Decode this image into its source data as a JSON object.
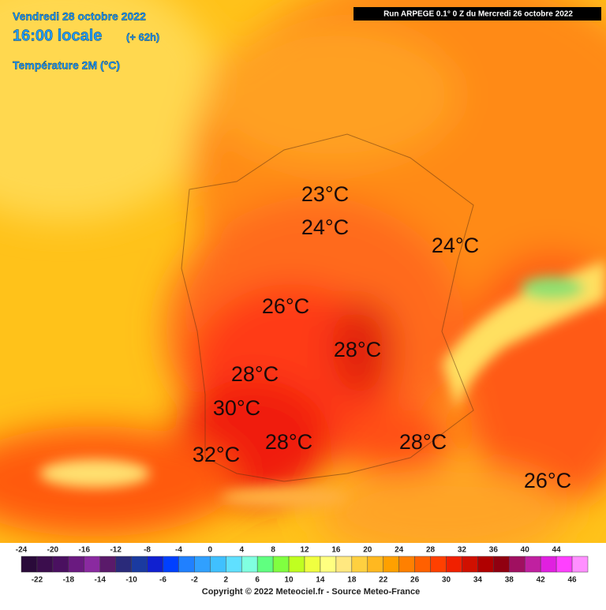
{
  "header": {
    "date": "Vendredi 28 octobre 2022",
    "time": "16:00 locale",
    "lead": "(+ 62h)",
    "variable": "Température 2M (°C)",
    "run": "Run ARPEGE 0.1° 0 Z du Mercredi 26 octobre 2022"
  },
  "map_labels": [
    "23°C",
    "24°C",
    "24°C",
    "26°C",
    "28°C",
    "28°C",
    "30°C",
    "28°C",
    "32°C",
    "28°C",
    "26°C"
  ],
  "legend": {
    "ticks": [
      -24,
      -22,
      -20,
      -18,
      -16,
      -14,
      -12,
      -10,
      -8,
      -6,
      -4,
      -2,
      0,
      2,
      4,
      6,
      8,
      10,
      12,
      14,
      16,
      18,
      20,
      22,
      24,
      26,
      28,
      30,
      32,
      34,
      36,
      38,
      40,
      42,
      44,
      46
    ],
    "colors": [
      "#2a0a3a",
      "#3b0d4d",
      "#4a1060",
      "#6a1a80",
      "#8a2aa0",
      "#5a1a6a",
      "#2a2a7a",
      "#1a3aa0",
      "#1020d0",
      "#0040ff",
      "#2080ff",
      "#30a0ff",
      "#40c0ff",
      "#60e0ff",
      "#80ffe0",
      "#60ff80",
      "#80ff40",
      "#c0ff20",
      "#f0ff40",
      "#ffff80",
      "#ffe880",
      "#ffd040",
      "#ffb820",
      "#ffa000",
      "#ff8000",
      "#ff6000",
      "#ff4000",
      "#f02000",
      "#d01000",
      "#b00000",
      "#900010",
      "#a01060",
      "#c020a0",
      "#e020e0",
      "#ff40ff",
      "#ff90ff"
    ]
  },
  "footer": "Copyright © 2022 Meteociel.fr - Source Meteo-France"
}
